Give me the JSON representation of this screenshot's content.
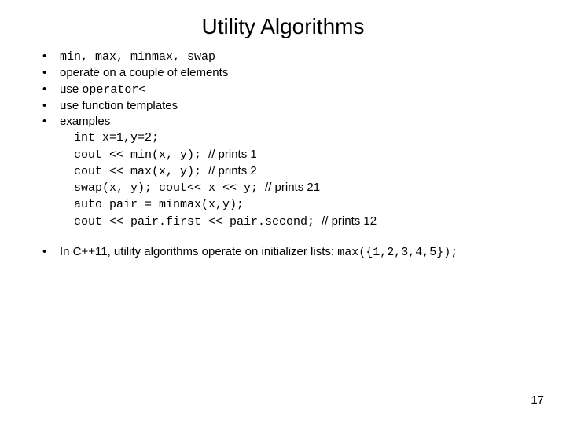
{
  "title": "Utility Algorithms",
  "bullets": {
    "b1_code": "min, max, minmax, swap",
    "b2": "operate on a couple of elements",
    "b3_prefix": "use ",
    "b3_code": "operator<",
    "b4": "use function templates",
    "b5": "examples"
  },
  "examples": {
    "l1": "int x=1,y=2;",
    "l2_code": "cout << min(x, y); ",
    "l2_cmt": "// prints 1",
    "l3_code": "cout << max(x, y);  ",
    "l3_cmt": "// prints 2",
    "l4_code": "swap(x, y); cout<< x << y; ",
    "l4_cmt": "// prints 21",
    "l5": "auto pair = minmax(x,y);",
    "l6_code": "cout << pair.first << pair.second; ",
    "l6_cmt": "// prints 12"
  },
  "footer": {
    "text": "In C++11, utility algorithms operate on initializer lists: ",
    "code": "max({1,2,3,4,5});"
  },
  "pagenum": "17"
}
